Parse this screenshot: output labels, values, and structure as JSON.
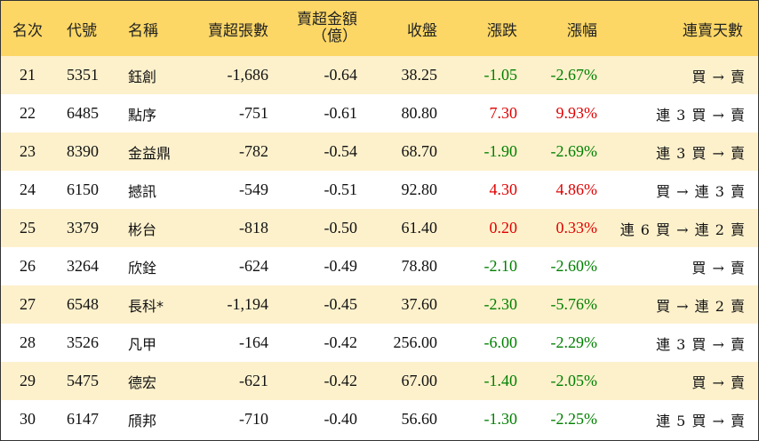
{
  "headers": {
    "rank": "名次",
    "code": "代號",
    "name": "名稱",
    "net_sell_shares": "賣超張數",
    "net_sell_amount_line1": "賣超金額",
    "net_sell_amount_line2": "（億）",
    "close": "收盤",
    "change": "漲跌",
    "change_pct": "漲幅",
    "streak": "連賣天數"
  },
  "colors": {
    "header_bg": "#fcd766",
    "odd_row_bg": "#fdf1cc",
    "up": "#e00000",
    "down": "#008000"
  },
  "rows": [
    {
      "rank": "21",
      "code": "5351",
      "name": "鈺創",
      "shares": "-1,686",
      "amount": "-0.64",
      "close": "38.25",
      "change": "-1.05",
      "pct": "-2.67%",
      "dir": "down",
      "streak": "買 → 賣"
    },
    {
      "rank": "22",
      "code": "6485",
      "name": "點序",
      "shares": "-751",
      "amount": "-0.61",
      "close": "80.80",
      "change": "7.30",
      "pct": "9.93%",
      "dir": "up",
      "streak": "連 3 買 → 賣"
    },
    {
      "rank": "23",
      "code": "8390",
      "name": "金益鼎",
      "shares": "-782",
      "amount": "-0.54",
      "close": "68.70",
      "change": "-1.90",
      "pct": "-2.69%",
      "dir": "down",
      "streak": "連 3 買 → 賣"
    },
    {
      "rank": "24",
      "code": "6150",
      "name": "撼訊",
      "shares": "-549",
      "amount": "-0.51",
      "close": "92.80",
      "change": "4.30",
      "pct": "4.86%",
      "dir": "up",
      "streak": "買 → 連 3 賣"
    },
    {
      "rank": "25",
      "code": "3379",
      "name": "彬台",
      "shares": "-818",
      "amount": "-0.50",
      "close": "61.40",
      "change": "0.20",
      "pct": "0.33%",
      "dir": "up",
      "streak": "連 6 買 → 連 2 賣"
    },
    {
      "rank": "26",
      "code": "3264",
      "name": "欣銓",
      "shares": "-624",
      "amount": "-0.49",
      "close": "78.80",
      "change": "-2.10",
      "pct": "-2.60%",
      "dir": "down",
      "streak": "買 → 賣"
    },
    {
      "rank": "27",
      "code": "6548",
      "name": "長科*",
      "shares": "-1,194",
      "amount": "-0.45",
      "close": "37.60",
      "change": "-2.30",
      "pct": "-5.76%",
      "dir": "down",
      "streak": "買 → 連 2 賣"
    },
    {
      "rank": "28",
      "code": "3526",
      "name": "凡甲",
      "shares": "-164",
      "amount": "-0.42",
      "close": "256.00",
      "change": "-6.00",
      "pct": "-2.29%",
      "dir": "down",
      "streak": "連 3 買 → 賣"
    },
    {
      "rank": "29",
      "code": "5475",
      "name": "德宏",
      "shares": "-621",
      "amount": "-0.42",
      "close": "67.00",
      "change": "-1.40",
      "pct": "-2.05%",
      "dir": "down",
      "streak": "買 → 賣"
    },
    {
      "rank": "30",
      "code": "6147",
      "name": "頎邦",
      "shares": "-710",
      "amount": "-0.40",
      "close": "56.60",
      "change": "-1.30",
      "pct": "-2.25%",
      "dir": "down",
      "streak": "連 5 買 → 賣"
    }
  ]
}
